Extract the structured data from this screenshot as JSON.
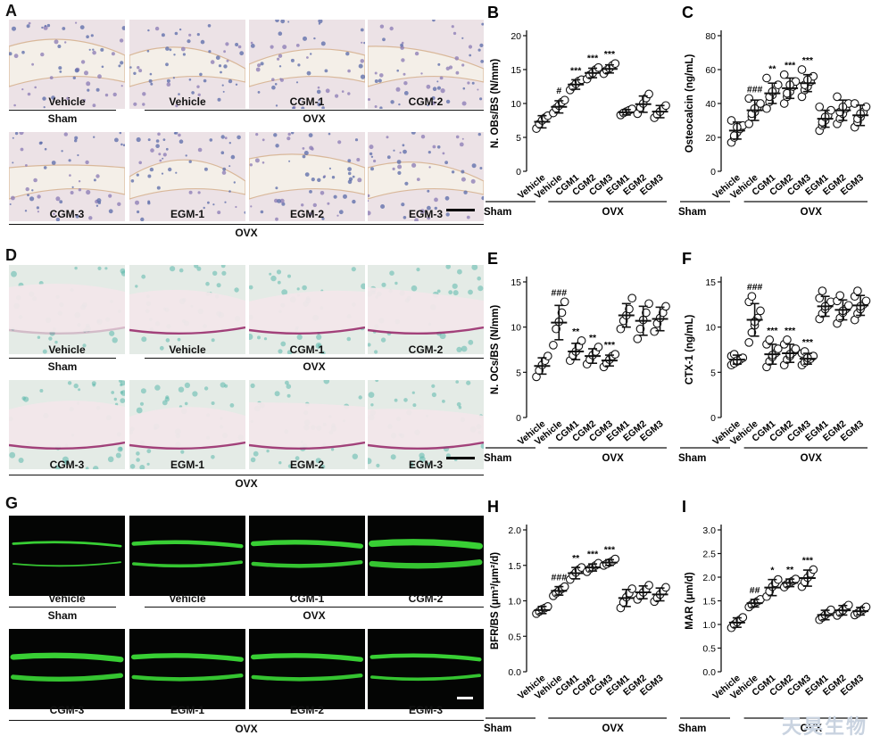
{
  "panels": {
    "A": {
      "letter": "A",
      "labels": [
        "Vehicle",
        "Vehicle",
        "CGM-1",
        "CGM-2",
        "CGM-3",
        "EGM-1",
        "EGM-2",
        "EGM-3"
      ],
      "groups": {
        "sham": "Sham",
        "ovx_top": "OVX",
        "ovx_bottom": "OVX"
      }
    },
    "D": {
      "letter": "D",
      "labels": [
        "Vehicle",
        "Vehicle",
        "CGM-1",
        "CGM-2",
        "CGM-3",
        "EGM-1",
        "EGM-2",
        "EGM-3"
      ],
      "groups": {
        "sham": "Sham",
        "ovx_top": "OVX",
        "ovx_bottom": "OVX"
      }
    },
    "G": {
      "letter": "G",
      "labels": [
        "Vehicle",
        "Vehicle",
        "CGM-1",
        "CGM-2",
        "CGM-3",
        "EGM-1",
        "EGM-2",
        "EGM-3"
      ],
      "groups": {
        "sham": "Sham",
        "ovx_top": "OVX",
        "ovx_bottom": "OVX"
      }
    }
  },
  "colors": {
    "he_bg": "#efe6ea",
    "trap_bg": "#e9ece8",
    "fluor_bg": "#040504",
    "fluor": "#3ee63a",
    "point": "#ffffff",
    "stroke": "#111111"
  },
  "watermark": "天昊生物",
  "chart_data": [
    {
      "id": "B",
      "letter": "B",
      "type": "scatter",
      "ylabel": "N. OBs/BS (N/mm)",
      "ylim": [
        0,
        20
      ],
      "yticks": [
        0,
        5,
        10,
        15,
        20
      ],
      "categories": [
        "Vehicle",
        "Vehicle",
        "CGM1",
        "CGM2",
        "CGM3",
        "EGM1",
        "EGM2",
        "EGM3"
      ],
      "group_labels": {
        "sham": "Sham",
        "ovx": "OVX"
      },
      "means": [
        7.3,
        9.5,
        12.8,
        14.5,
        15.1,
        8.7,
        9.9,
        8.8
      ],
      "sd": [
        0.9,
        0.9,
        0.7,
        0.7,
        0.6,
        0.4,
        1.2,
        0.9
      ],
      "points": [
        [
          6.3,
          7.0,
          7.5,
          7.9,
          8.2
        ],
        [
          8.6,
          9.3,
          9.7,
          10.2,
          10.5
        ],
        [
          12.0,
          12.5,
          12.9,
          13.3,
          13.5
        ],
        [
          13.6,
          14.2,
          14.5,
          15.0,
          15.3
        ],
        [
          14.4,
          14.9,
          15.2,
          15.6,
          15.9
        ],
        [
          8.3,
          8.6,
          8.8,
          9.0,
          9.2
        ],
        [
          8.5,
          9.4,
          10.0,
          10.8,
          11.4
        ],
        [
          7.9,
          8.4,
          8.8,
          9.3,
          9.7
        ]
      ],
      "sig": [
        "",
        "#",
        "***",
        "***",
        "***",
        "",
        "",
        ""
      ]
    },
    {
      "id": "C",
      "letter": "C",
      "type": "scatter",
      "ylabel": "Osteocalcin (ng/mL)",
      "ylim": [
        0,
        80
      ],
      "yticks": [
        0,
        20,
        40,
        60,
        80
      ],
      "categories": [
        "Vehicle",
        "Vehicle",
        "CGM1",
        "CGM2",
        "CGM3",
        "EGM1",
        "EGM2",
        "EGM3"
      ],
      "group_labels": {
        "sham": "Sham",
        "ovx": "OVX"
      },
      "means": [
        24,
        36,
        46,
        49,
        52,
        31,
        36,
        33
      ],
      "sd": [
        5,
        6,
        6,
        6,
        5,
        5,
        6,
        6
      ],
      "points": [
        [
          17,
          20,
          23,
          25,
          27,
          30,
          21,
          26
        ],
        [
          28,
          32,
          35,
          38,
          40,
          43,
          34,
          37
        ],
        [
          37,
          41,
          45,
          48,
          51,
          55,
          44,
          47
        ],
        [
          40,
          44,
          47,
          50,
          53,
          57,
          46,
          51
        ],
        [
          44,
          48,
          50,
          53,
          56,
          60,
          51,
          54
        ],
        [
          24,
          27,
          30,
          33,
          36,
          38,
          29,
          32
        ],
        [
          28,
          31,
          34,
          37,
          40,
          44,
          35,
          38
        ],
        [
          26,
          29,
          32,
          35,
          38,
          40,
          31,
          34
        ]
      ],
      "sig": [
        "",
        "###",
        "**",
        "***",
        "***",
        "",
        "",
        ""
      ]
    },
    {
      "id": "E",
      "letter": "E",
      "type": "scatter",
      "ylabel": "N. OCs/BS (N/mm)",
      "ylim": [
        0,
        15
      ],
      "yticks": [
        0,
        5,
        10,
        15
      ],
      "categories": [
        "Vehicle",
        "Vehicle",
        "CGM1",
        "CGM2",
        "CGM3",
        "EGM1",
        "EGM2",
        "EGM3"
      ],
      "group_labels": {
        "sham": "Sham",
        "ovx": "OVX"
      },
      "means": [
        5.7,
        10.5,
        7.3,
        6.8,
        6.3,
        11.3,
        10.7,
        10.9
      ],
      "sd": [
        0.9,
        1.9,
        0.9,
        0.8,
        0.6,
        1.3,
        1.6,
        1.3
      ],
      "points": [
        [
          4.5,
          5.2,
          5.8,
          6.3,
          6.8
        ],
        [
          8.0,
          9.8,
          10.6,
          11.6,
          12.8
        ],
        [
          6.3,
          6.9,
          7.3,
          7.9,
          8.5
        ],
        [
          5.9,
          6.4,
          6.9,
          7.3,
          7.8
        ],
        [
          5.6,
          6.0,
          6.4,
          6.8,
          7.0
        ],
        [
          9.8,
          10.7,
          11.3,
          12.0,
          13.2
        ],
        [
          8.7,
          9.8,
          10.8,
          11.6,
          12.6
        ],
        [
          9.5,
          10.4,
          11.0,
          11.6,
          12.3
        ]
      ],
      "sig": [
        "",
        "###",
        "**",
        "**",
        "***",
        "",
        "",
        ""
      ]
    },
    {
      "id": "F",
      "letter": "F",
      "type": "scatter",
      "ylabel": "CTX-1 (ng/mL)",
      "ylim": [
        0,
        15
      ],
      "yticks": [
        0,
        5,
        10,
        15
      ],
      "categories": [
        "Vehicle",
        "Vehicle",
        "CGM1",
        "CGM2",
        "CGM3",
        "EGM1",
        "EGM2",
        "EGM3"
      ],
      "group_labels": {
        "sham": "Sham",
        "ovx": "OVX"
      },
      "means": [
        6.4,
        10.8,
        7.0,
        7.1,
        6.5,
        12.3,
        11.9,
        12.4
      ],
      "sd": [
        0.5,
        1.8,
        1.1,
        1.0,
        0.6,
        1.1,
        1.1,
        1.1
      ],
      "points": [
        [
          5.8,
          6.0,
          6.2,
          6.4,
          6.6,
          6.8,
          7.0,
          6.3
        ],
        [
          8.3,
          9.4,
          10.2,
          11.0,
          11.8,
          12.8,
          13.4,
          10.6
        ],
        [
          5.6,
          6.2,
          6.7,
          7.1,
          7.6,
          8.1,
          8.6,
          6.9
        ],
        [
          5.8,
          6.4,
          6.8,
          7.2,
          7.6,
          8.1,
          8.6,
          7.0
        ],
        [
          5.8,
          6.1,
          6.3,
          6.5,
          6.8,
          7.1,
          7.3,
          6.6
        ],
        [
          10.9,
          11.5,
          12.0,
          12.4,
          12.8,
          13.2,
          14.0,
          12.3
        ],
        [
          10.4,
          11.0,
          11.6,
          12.0,
          12.4,
          12.9,
          13.5,
          11.8
        ],
        [
          10.8,
          11.5,
          12.0,
          12.5,
          12.9,
          13.4,
          14.0,
          12.3
        ]
      ],
      "sig": [
        "",
        "###",
        "***",
        "***",
        "***",
        "",
        "",
        ""
      ]
    },
    {
      "id": "H",
      "letter": "H",
      "type": "scatter",
      "ylabel": "BFR/BS (μm³/μm²/d)",
      "ylim": [
        0,
        2.0
      ],
      "yticks": [
        0.0,
        0.5,
        1.0,
        1.5,
        2.0
      ],
      "categories": [
        "Vehicle",
        "Vehicle",
        "CGM1",
        "CGM2",
        "CGM3",
        "EGM1",
        "EGM2",
        "EGM3"
      ],
      "group_labels": {
        "sham": "Sham",
        "ovx": "OVX"
      },
      "means": [
        0.87,
        1.14,
        1.39,
        1.47,
        1.54,
        1.04,
        1.12,
        1.09
      ],
      "sd": [
        0.05,
        0.06,
        0.08,
        0.05,
        0.04,
        0.12,
        0.09,
        0.09
      ],
      "points": [
        [
          0.82,
          0.85,
          0.88,
          0.9,
          0.92
        ],
        [
          1.07,
          1.11,
          1.14,
          1.17,
          1.2
        ],
        [
          1.3,
          1.36,
          1.4,
          1.44,
          1.47
        ],
        [
          1.41,
          1.45,
          1.47,
          1.5,
          1.53
        ],
        [
          1.5,
          1.52,
          1.54,
          1.56,
          1.59
        ],
        [
          0.9,
          0.98,
          1.05,
          1.11,
          1.17
        ],
        [
          1.02,
          1.07,
          1.12,
          1.17,
          1.22
        ],
        [
          0.99,
          1.04,
          1.09,
          1.14,
          1.19
        ]
      ],
      "sig": [
        "",
        "###",
        "**",
        "***",
        "***",
        "",
        "",
        ""
      ]
    },
    {
      "id": "I",
      "letter": "I",
      "type": "scatter",
      "ylabel": "MAR (μm/d)",
      "ylim": [
        0,
        3.0
      ],
      "yticks": [
        0.0,
        0.5,
        1.0,
        1.5,
        2.0,
        2.5,
        3.0
      ],
      "categories": [
        "Vehicle",
        "Vehicle",
        "CGM1",
        "CGM2",
        "CGM3",
        "EGM1",
        "EGM2",
        "EGM3"
      ],
      "group_labels": {
        "sham": "Sham",
        "ovx": "OVX"
      },
      "means": [
        1.04,
        1.45,
        1.78,
        1.88,
        1.98,
        1.2,
        1.3,
        1.28
      ],
      "sd": [
        0.1,
        0.08,
        0.17,
        0.08,
        0.17,
        0.1,
        0.1,
        0.08
      ],
      "points": [
        [
          0.93,
          1.0,
          1.05,
          1.1,
          1.15
        ],
        [
          1.37,
          1.42,
          1.46,
          1.49,
          1.53
        ],
        [
          1.59,
          1.7,
          1.8,
          1.88,
          1.95
        ],
        [
          1.79,
          1.85,
          1.89,
          1.92,
          1.96
        ],
        [
          1.8,
          1.9,
          1.99,
          2.08,
          2.16
        ],
        [
          1.1,
          1.15,
          1.2,
          1.25,
          1.31
        ],
        [
          1.19,
          1.25,
          1.3,
          1.36,
          1.41
        ],
        [
          1.2,
          1.24,
          1.28,
          1.32,
          1.37
        ]
      ],
      "sig": [
        "",
        "##",
        "*",
        "**",
        "***",
        "",
        "",
        ""
      ]
    }
  ]
}
